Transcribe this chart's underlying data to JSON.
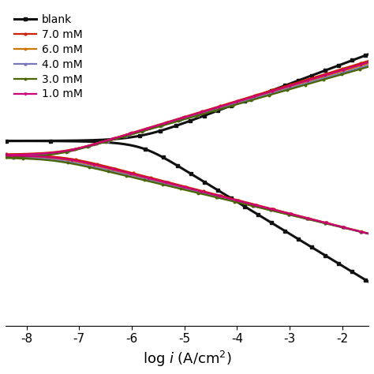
{
  "xlabel": "log $i$ (A/cm$^2$)",
  "xlim": [
    -8.4,
    -1.5
  ],
  "series": [
    {
      "label": "blank",
      "color": "#111111",
      "marker": "s",
      "markersize": 2.5,
      "linewidth": 2.2,
      "log_icorr": -5.9,
      "Ecorr": 0.0,
      "ba": 0.08,
      "bc": 0.13
    },
    {
      "label": "7.0 mM",
      "color": "#cc2200",
      "marker": "o",
      "markersize": 2.0,
      "linewidth": 1.6,
      "log_icorr": -7.35,
      "Ecorr": -0.055,
      "ba": 0.065,
      "bc": 0.055
    },
    {
      "label": "6.0 mM",
      "color": "#cc7700",
      "marker": "o",
      "markersize": 1.8,
      "linewidth": 1.6,
      "log_icorr": -7.45,
      "Ecorr": -0.06,
      "ba": 0.063,
      "bc": 0.053
    },
    {
      "label": "4.0 mM",
      "color": "#7777bb",
      "marker": "^",
      "markersize": 2.0,
      "linewidth": 1.6,
      "log_icorr": -7.5,
      "Ecorr": -0.065,
      "ba": 0.062,
      "bc": 0.052
    },
    {
      "label": "3.0 mM",
      "color": "#4a6600",
      "marker": "o",
      "markersize": 1.8,
      "linewidth": 1.6,
      "log_icorr": -7.55,
      "Ecorr": -0.068,
      "ba": 0.061,
      "bc": 0.051
    },
    {
      "label": "1.0 mM",
      "color": "#cc0077",
      "marker": "v",
      "markersize": 2.0,
      "linewidth": 1.6,
      "log_icorr": -7.4,
      "Ecorr": -0.058,
      "ba": 0.064,
      "bc": 0.054
    }
  ],
  "xticks": [
    -8,
    -7,
    -6,
    -5,
    -4,
    -3,
    -2
  ],
  "tick_fontsize": 11,
  "label_fontsize": 13,
  "legend_fontsize": 10
}
